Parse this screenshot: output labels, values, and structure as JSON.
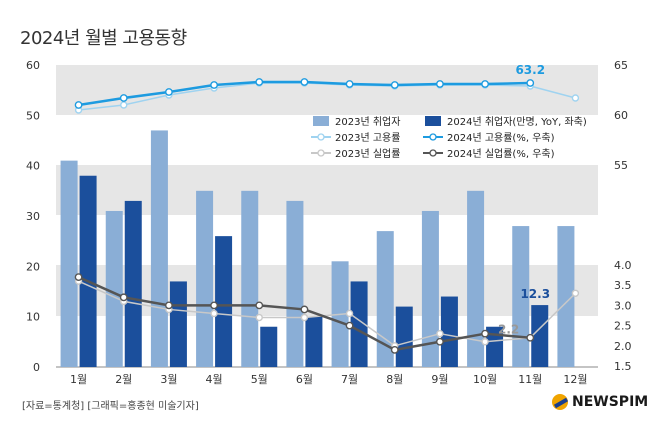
{
  "title": "2024년 월별 고용동향",
  "footer": {
    "source": "[자료=통계청] [그래픽=홍종현 미술기자]",
    "logo": "NEWSPIM"
  },
  "chart_data": {
    "type": "bar",
    "categories": [
      "1월",
      "2월",
      "3월",
      "4월",
      "5월",
      "6월",
      "7월",
      "8월",
      "9월",
      "10월",
      "11월",
      "12월"
    ],
    "left_axis": {
      "ylim": [
        0,
        60
      ],
      "ticks": [
        "0",
        "10",
        "20",
        "30",
        "40",
        "50",
        "60"
      ]
    },
    "right_axis": {
      "upper_ticks": [
        "55",
        "60",
        "65"
      ],
      "lower_ticks": [
        "1.5",
        "2.0",
        "2.5",
        "3.0",
        "3.5",
        "4.0"
      ]
    },
    "series": [
      {
        "name": "2023년 취업자",
        "type": "bar",
        "axis": "left",
        "color": "#8aaed6",
        "values": [
          41,
          31,
          47,
          35,
          35,
          33,
          21,
          27,
          31,
          35,
          28,
          28
        ]
      },
      {
        "name": "2024년 취업자(만명, YoY, 좌축)",
        "type": "bar",
        "axis": "left",
        "color": "#1b4f9c",
        "values": [
          38,
          33,
          17,
          26,
          8,
          10,
          17,
          12,
          14,
          8,
          12.3,
          null
        ]
      },
      {
        "name": "2023년 고용률",
        "type": "line",
        "axis": "right-upper",
        "color": "#9fd3f0",
        "values": [
          60.5,
          61.0,
          62.0,
          62.7,
          63.2,
          63.2,
          63.0,
          62.9,
          63.0,
          63.0,
          62.9,
          61.7
        ]
      },
      {
        "name": "2024년 고용률(%, 우축)",
        "type": "line",
        "axis": "right-upper",
        "color": "#1d9be0",
        "values": [
          61.0,
          61.7,
          62.3,
          63.0,
          63.3,
          63.3,
          63.1,
          63.0,
          63.1,
          63.1,
          63.2,
          null
        ]
      },
      {
        "name": "2023년 실업률",
        "type": "line",
        "axis": "right-lower",
        "color": "#c8c8c8",
        "values": [
          3.6,
          3.1,
          2.9,
          2.8,
          2.7,
          2.7,
          2.8,
          2.0,
          2.3,
          2.1,
          2.2,
          3.3
        ]
      },
      {
        "name": "2024년 실업률(%, 우축)",
        "type": "line",
        "axis": "right-lower",
        "color": "#555555",
        "values": [
          3.7,
          3.2,
          3.0,
          3.0,
          3.0,
          2.9,
          2.5,
          1.9,
          2.1,
          2.3,
          2.2,
          null
        ]
      }
    ],
    "annotations": [
      {
        "text": "63.2",
        "color": "#1d9be0"
      },
      {
        "text": "12.3",
        "color": "#1b4f9c"
      },
      {
        "text": "2.2",
        "color": "#999999"
      }
    ],
    "legend_placement": "center-right",
    "grid": true
  }
}
